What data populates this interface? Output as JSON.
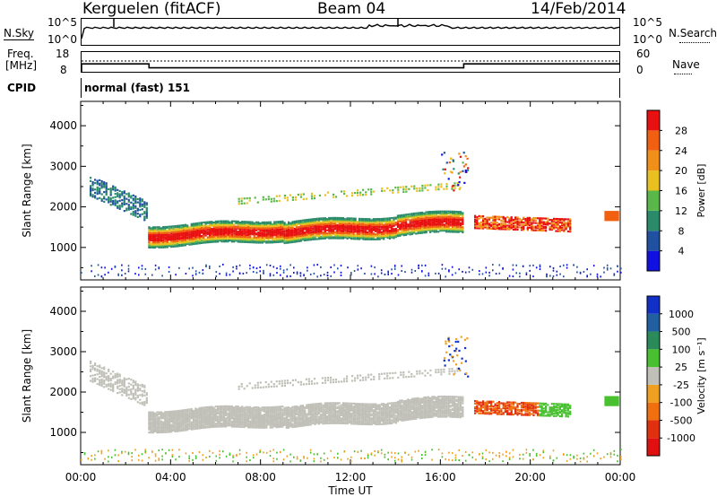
{
  "header": {
    "station": "Kerguelen (fitACF)",
    "beam": "Beam 04",
    "date": "14/Feb/2014"
  },
  "nsky_panel": {
    "label": "N.Sky",
    "left_ticks": [
      "10^5",
      "10^0"
    ],
    "right_ticks": [
      "10^5",
      "10^0"
    ],
    "right_label": "N.Search"
  },
  "freq_panel": {
    "label_line1": "Freq.",
    "label_line2": "[MHz]",
    "left_ticks": [
      "18",
      "8"
    ],
    "right_ticks": [
      "60",
      "0"
    ],
    "right_label": "Nave"
  },
  "cpid_panel": {
    "label": "CPID",
    "value": "normal (fast) 151"
  },
  "chart_data": [
    {
      "type": "heatmap",
      "name": "power",
      "ylabel": "Slant Range [km]",
      "y_ticks": [
        "1000",
        "2000",
        "3000",
        "4000"
      ],
      "y_tick_values": [
        1000,
        2000,
        3000,
        4000
      ],
      "ylim": [
        200,
        4600
      ],
      "colorbar_label": "Power [dB]",
      "colorbar_ticks": [
        "4",
        "8",
        "12",
        "16",
        "20",
        "24",
        "28"
      ],
      "colorbar_values": [
        4,
        8,
        12,
        16,
        20,
        24,
        28
      ],
      "colorbar_colors": [
        "#1010e0",
        "#2050a0",
        "#2a8a6a",
        "#5ab84a",
        "#e8c020",
        "#f09018",
        "#f06010",
        "#e81010"
      ]
    },
    {
      "type": "heatmap",
      "name": "velocity",
      "ylabel": "Slant Range [km]",
      "y_ticks": [
        "1000",
        "2000",
        "3000",
        "4000"
      ],
      "y_tick_values": [
        1000,
        2000,
        3000,
        4000
      ],
      "ylim": [
        200,
        4600
      ],
      "colorbar_label": "Velocity [m s⁻¹]",
      "colorbar_ticks": [
        "1000",
        "500",
        "100",
        "25",
        "-25",
        "-100",
        "-500",
        "-1000"
      ],
      "colorbar_colors": [
        "#1030c8",
        "#2060a0",
        "#2a8a5a",
        "#48c030",
        "#c0c0b8",
        "#f0a020",
        "#f07010",
        "#e03010",
        "#e01010"
      ]
    }
  ],
  "x_axis": {
    "label": "Time UT",
    "ticks": [
      "00:00",
      "04:00",
      "08:00",
      "12:00",
      "16:00",
      "20:00",
      "00:00"
    ],
    "tick_hours": [
      0,
      4,
      8,
      12,
      16,
      20,
      24
    ]
  },
  "freq_series": {
    "segments": [
      {
        "start_hour": 0,
        "end_hour": 3.0,
        "mhz": 12
      },
      {
        "start_hour": 3.0,
        "end_hour": 17.0,
        "mhz": 10
      },
      {
        "start_hour": 17.0,
        "end_hour": 24,
        "mhz": 12
      }
    ]
  }
}
